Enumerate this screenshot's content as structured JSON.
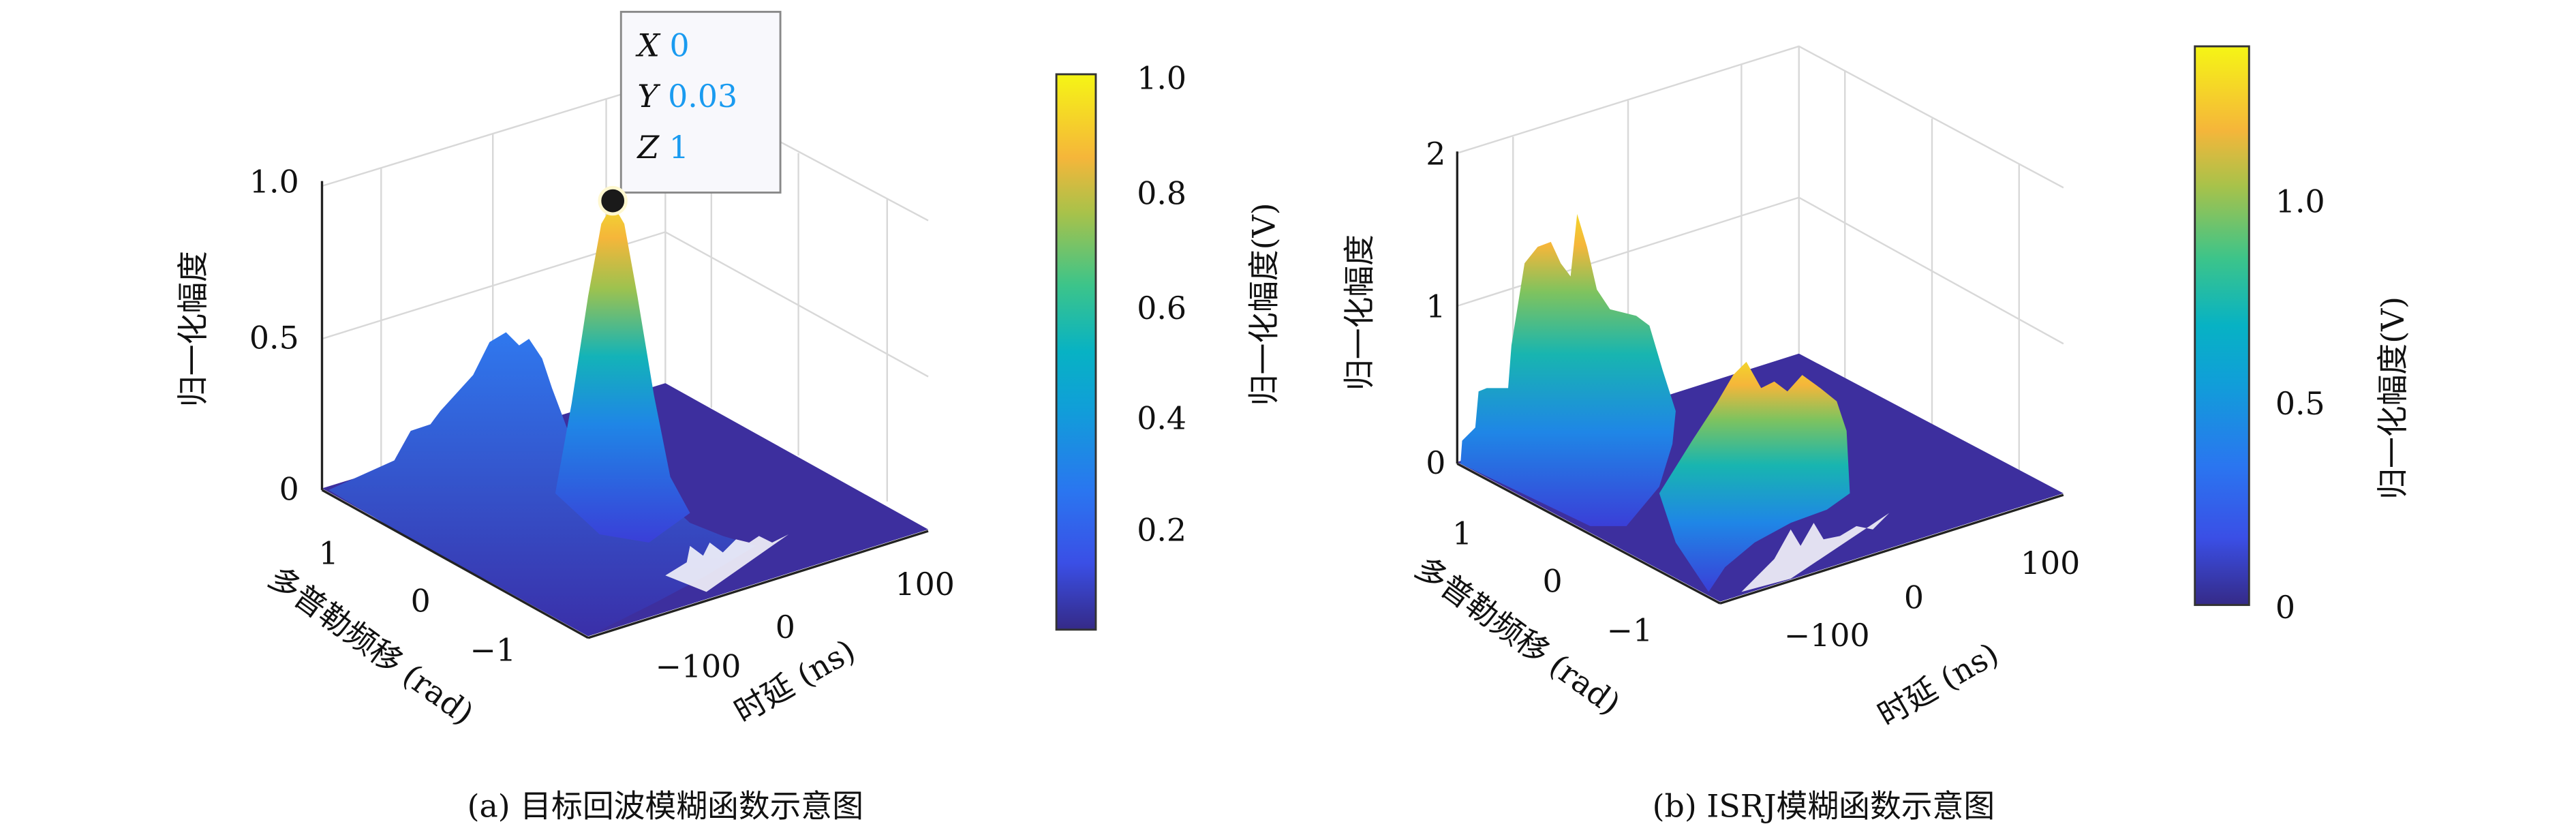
{
  "chart_data": [
    {
      "type": "surface",
      "panel": "a",
      "caption": "(a) 目标回波模糊函数示意图",
      "xlabel": "时延 (ns)",
      "ylabel": "多普勒频移 (rad)",
      "zlabel": "归一化幅度",
      "x_ticks": [
        "−100",
        "0",
        "100"
      ],
      "y_ticks": [
        "1",
        "0",
        "−1"
      ],
      "z_ticks": [
        "0",
        "0.5",
        "1.0"
      ],
      "zlim": [
        0,
        1
      ],
      "peaks": [
        {
          "x": 0,
          "y": 0.03,
          "z": 1.0
        },
        {
          "x": -60,
          "y": 0.8,
          "z": 0.45
        }
      ],
      "datatip": {
        "x_label": "X",
        "x_value": "0",
        "y_label": "Y",
        "y_value": "0.03",
        "z_label": "Z",
        "z_value": "1"
      },
      "colorbar": {
        "label": "归一化幅度(V)",
        "ticks": [
          "0.2",
          "0.4",
          "0.6",
          "0.8",
          "1.0"
        ],
        "range": [
          0.03,
          1.0
        ]
      }
    },
    {
      "type": "surface",
      "panel": "b",
      "caption": "(b) ISRJ模糊函数示意图",
      "xlabel": "时延 (ns)",
      "ylabel": "多普勒频移 (rad)",
      "zlabel": "归一化幅度",
      "x_ticks": [
        "−100",
        "0",
        "100"
      ],
      "y_ticks": [
        "1",
        "0",
        "−1"
      ],
      "z_ticks": [
        "0",
        "1",
        "2"
      ],
      "zlim": [
        0,
        2
      ],
      "peaks": [
        {
          "x": -100,
          "y": 0.6,
          "z": 1.35
        },
        {
          "x": 20,
          "y": -0.3,
          "z": 0.85
        }
      ],
      "colorbar": {
        "label": "归一化幅度(V)",
        "ticks": [
          "0",
          "0.5",
          "1.0"
        ],
        "range": [
          0,
          1.35
        ]
      }
    }
  ],
  "colors": {
    "parula": [
      "#352a87",
      "#3a4fe6",
      "#1f83e8",
      "#07a6c8",
      "#2fbb9a",
      "#8bc25e",
      "#d7b93c",
      "#fbbf33",
      "#f5f014"
    ],
    "floor": "#3d2f9e",
    "datatip_value": "#1a9bf0"
  }
}
